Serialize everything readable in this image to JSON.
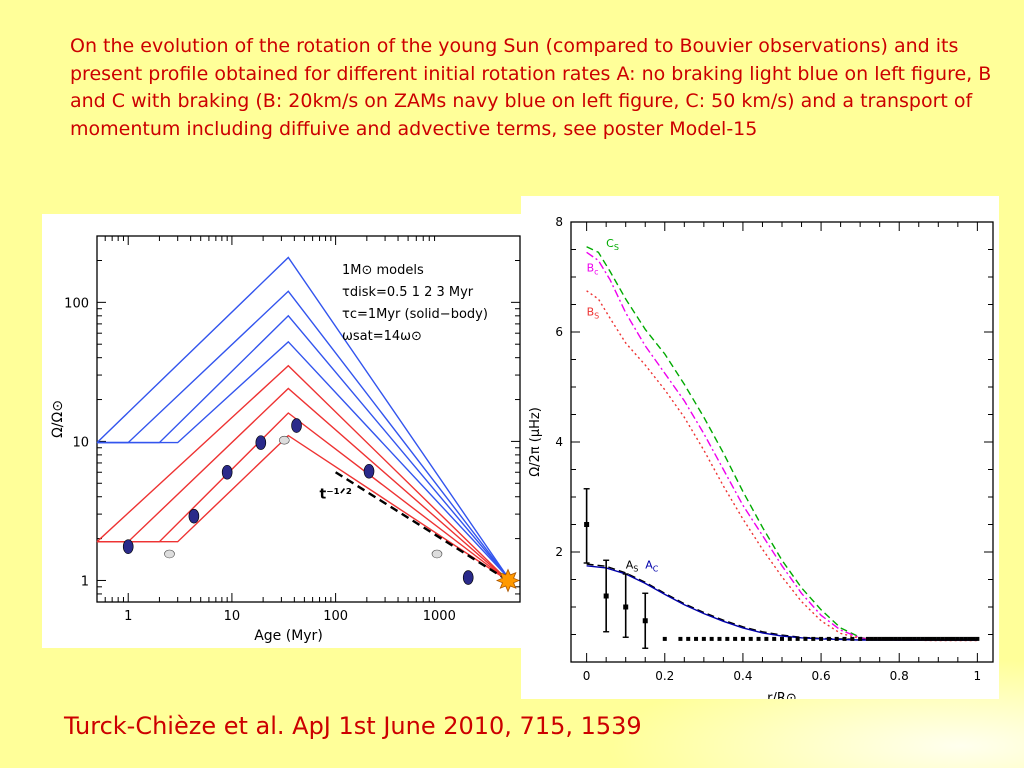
{
  "caption": "On the evolution of the rotation of the young Sun (compared to Bouvier observations) and its present profile obtained for different initial rotation rates A: no braking light blue on left figure, B and C with braking (B: 20km/s on ZAMs navy blue on left figure, C: 50 km/s) and a transport of momentum including diffuive and advective terms, see poster Model-15",
  "citation": "Turck-Chièze et al. ApJ 1st June 2010, 715, 1539",
  "colors": {
    "caption_text": "#cc0000",
    "blue_tracks": "#3355ee",
    "red_tracks": "#ee3333",
    "observation_fill": "#2a2a8a",
    "C_green": "#00aa00",
    "B_c_magenta": "#ee00ee",
    "B_s_red": "#ee1111",
    "A_navy": "#0000aa"
  },
  "chart_data": [
    {
      "type": "line",
      "xlabel": "Age (Myr)",
      "ylabel": "Ω/Ω⊙",
      "x_scale": "log",
      "y_scale": "log",
      "xlim": [
        0.5,
        6000
      ],
      "ylim": [
        0.7,
        300
      ],
      "x_ticks": [
        1,
        10,
        100,
        1000
      ],
      "x_tick_labels": [
        "1",
        "10",
        "100",
        "1000"
      ],
      "y_ticks": [
        1,
        10,
        100
      ],
      "y_tick_labels": [
        "1",
        "10",
        "100"
      ],
      "legend_placement": "top-right",
      "legend": {
        "line1": "1M⊙ models",
        "line2": "τdisk=0.5 1 2 3 Myr",
        "line3": "τc=1Myr (solid−body)",
        "line4": "ωsat=14ω⊙"
      },
      "annotation": "t⁻¹ᐟ²",
      "series": [
        {
          "color": "blue",
          "x": [
            0.5,
            0.5,
            35,
            4600
          ],
          "y": [
            9.8,
            9.8,
            210,
            1.05
          ]
        },
        {
          "color": "blue",
          "x": [
            0.5,
            1,
            35,
            4600
          ],
          "y": [
            9.8,
            9.8,
            120,
            1.05
          ]
        },
        {
          "color": "blue",
          "x": [
            0.5,
            2,
            35,
            4600
          ],
          "y": [
            9.8,
            9.8,
            80,
            1.05
          ]
        },
        {
          "color": "blue",
          "x": [
            0.5,
            3,
            35,
            4600
          ],
          "y": [
            9.8,
            9.8,
            52,
            1.05
          ]
        },
        {
          "color": "red",
          "x": [
            0.5,
            0.5,
            35,
            4600
          ],
          "y": [
            1.9,
            1.9,
            35,
            1.0
          ]
        },
        {
          "color": "red",
          "x": [
            0.5,
            1,
            35,
            4600
          ],
          "y": [
            1.9,
            1.9,
            24,
            1.0
          ]
        },
        {
          "color": "red",
          "x": [
            0.5,
            2,
            35,
            4600
          ],
          "y": [
            1.9,
            1.9,
            16,
            1.0
          ]
        },
        {
          "color": "red",
          "x": [
            0.5,
            3,
            35,
            4600
          ],
          "y": [
            1.9,
            1.9,
            11,
            1.0
          ]
        }
      ],
      "slope_line": {
        "x": [
          100,
          4600
        ],
        "y": [
          6.0,
          1.0
        ]
      },
      "observations_dark": [
        {
          "x": 1.0,
          "y": 1.75
        },
        {
          "x": 4.3,
          "y": 2.9
        },
        {
          "x": 9.0,
          "y": 6.0
        },
        {
          "x": 19,
          "y": 9.8
        },
        {
          "x": 42,
          "y": 13
        },
        {
          "x": 210,
          "y": 6.1
        },
        {
          "x": 1900,
          "y": 1.05
        }
      ],
      "observations_light": [
        {
          "x": 2.5,
          "y": 1.55
        },
        {
          "x": 32,
          "y": 10.2
        },
        {
          "x": 950,
          "y": 1.55
        }
      ],
      "sun": {
        "x": 4600,
        "y": 1.0
      }
    },
    {
      "type": "line",
      "xlabel": "r/R⊙",
      "ylabel": "Ω/2π  (μHz)",
      "xlim": [
        -0.04,
        1.04
      ],
      "ylim": [
        0,
        8
      ],
      "x_ticks": [
        0,
        0.2,
        0.4,
        0.6,
        0.8,
        1
      ],
      "x_tick_labels": [
        "0",
        "0.2",
        "0.4",
        "0.6",
        "0.8",
        "1"
      ],
      "y_ticks": [
        2,
        4,
        6,
        8
      ],
      "y_tick_labels": [
        "2",
        "4",
        "6",
        "8"
      ],
      "grid": false,
      "series": [
        {
          "name": "CS",
          "style": "dashed",
          "color": "green",
          "x": [
            0,
            0.03,
            0.06,
            0.1,
            0.15,
            0.2,
            0.25,
            0.3,
            0.35,
            0.4,
            0.45,
            0.5,
            0.55,
            0.6,
            0.65,
            0.7,
            0.72,
            0.75,
            0.8,
            0.9,
            1.0
          ],
          "y": [
            7.55,
            7.45,
            7.1,
            6.6,
            6.05,
            5.6,
            5.05,
            4.45,
            3.8,
            3.1,
            2.45,
            1.85,
            1.35,
            0.95,
            0.62,
            0.45,
            0.42,
            0.41,
            0.41,
            0.4,
            0.4
          ]
        },
        {
          "name": "Bc",
          "style": "dash-dot",
          "color": "magenta",
          "x": [
            0,
            0.03,
            0.06,
            0.1,
            0.15,
            0.2,
            0.25,
            0.3,
            0.35,
            0.4,
            0.45,
            0.5,
            0.55,
            0.6,
            0.65,
            0.7,
            0.72,
            0.75,
            0.8,
            0.9,
            1.0
          ],
          "y": [
            7.45,
            7.3,
            6.95,
            6.35,
            5.75,
            5.25,
            4.75,
            4.15,
            3.5,
            2.85,
            2.3,
            1.75,
            1.25,
            0.85,
            0.58,
            0.44,
            0.42,
            0.41,
            0.4,
            0.4,
            0.4
          ]
        },
        {
          "name": "BS",
          "style": "dotted",
          "color": "red",
          "x": [
            0,
            0.03,
            0.06,
            0.1,
            0.15,
            0.2,
            0.25,
            0.3,
            0.35,
            0.4,
            0.45,
            0.5,
            0.55,
            0.6,
            0.65,
            0.7,
            0.72,
            0.75,
            0.8,
            0.9,
            1.0
          ],
          "y": [
            6.75,
            6.6,
            6.25,
            5.8,
            5.4,
            4.95,
            4.45,
            3.85,
            3.2,
            2.6,
            2.05,
            1.55,
            1.1,
            0.75,
            0.52,
            0.43,
            0.41,
            0.4,
            0.4,
            0.39,
            0.39
          ]
        },
        {
          "name": "AS",
          "style": "dashed",
          "color": "black",
          "x": [
            0,
            0.05,
            0.1,
            0.15,
            0.2,
            0.25,
            0.3,
            0.35,
            0.4,
            0.45,
            0.5,
            0.55,
            0.6,
            0.65,
            0.7,
            0.75,
            0.8,
            0.9,
            1.0
          ],
          "y": [
            1.78,
            1.74,
            1.62,
            1.45,
            1.25,
            1.06,
            0.9,
            0.76,
            0.64,
            0.55,
            0.49,
            0.45,
            0.43,
            0.42,
            0.41,
            0.41,
            0.41,
            0.41,
            0.41
          ]
        },
        {
          "name": "AC",
          "style": "solid",
          "color": "navy",
          "x": [
            0,
            0.05,
            0.1,
            0.15,
            0.2,
            0.25,
            0.3,
            0.35,
            0.4,
            0.45,
            0.5,
            0.55,
            0.6,
            0.65,
            0.7,
            0.75,
            0.8,
            0.9,
            1.0
          ],
          "y": [
            1.75,
            1.71,
            1.6,
            1.43,
            1.23,
            1.04,
            0.88,
            0.74,
            0.62,
            0.53,
            0.47,
            0.44,
            0.42,
            0.41,
            0.4,
            0.4,
            0.4,
            0.4,
            0.4
          ]
        }
      ],
      "series_labels": [
        {
          "base": "C",
          "sub": "S",
          "color": "green",
          "x": 0.05,
          "y": 7.55
        },
        {
          "base": "B",
          "sub": "c",
          "color": "magenta",
          "x": 0.0,
          "y": 7.1
        },
        {
          "base": "B",
          "sub": "S",
          "color": "red",
          "x": 0.0,
          "y": 6.3
        },
        {
          "base": "A",
          "sub": "S",
          "color": "black",
          "x": 0.1,
          "y": 1.7
        },
        {
          "base": "A",
          "sub": "C",
          "color": "navy",
          "x": 0.15,
          "y": 1.7
        }
      ],
      "observations_errorbars": [
        {
          "x": 0.0,
          "y": 2.5,
          "ylo": 1.8,
          "yhi": 3.15
        },
        {
          "x": 0.05,
          "y": 1.2,
          "ylo": 0.55,
          "yhi": 1.85
        },
        {
          "x": 0.1,
          "y": 1.0,
          "ylo": 0.45,
          "yhi": 1.6
        },
        {
          "x": 0.15,
          "y": 0.75,
          "ylo": 0.25,
          "yhi": 1.25
        }
      ],
      "observations_points": {
        "x": [
          0.2,
          0.24,
          0.26,
          0.28,
          0.3,
          0.32,
          0.34,
          0.36,
          0.38,
          0.4,
          0.42,
          0.44,
          0.46,
          0.48,
          0.5,
          0.52,
          0.54,
          0.56,
          0.58,
          0.6,
          0.62,
          0.64,
          0.66,
          0.68,
          0.7,
          0.72,
          0.73,
          0.74,
          0.75,
          0.76,
          0.77,
          0.78,
          0.79,
          0.8,
          0.81,
          0.82,
          0.83,
          0.84,
          0.85,
          0.86,
          0.87,
          0.88,
          0.89,
          0.9,
          0.91,
          0.92,
          0.93,
          0.94,
          0.95,
          0.96,
          0.97,
          0.98,
          0.99,
          1.0
        ],
        "y": 0.42
      }
    }
  ]
}
